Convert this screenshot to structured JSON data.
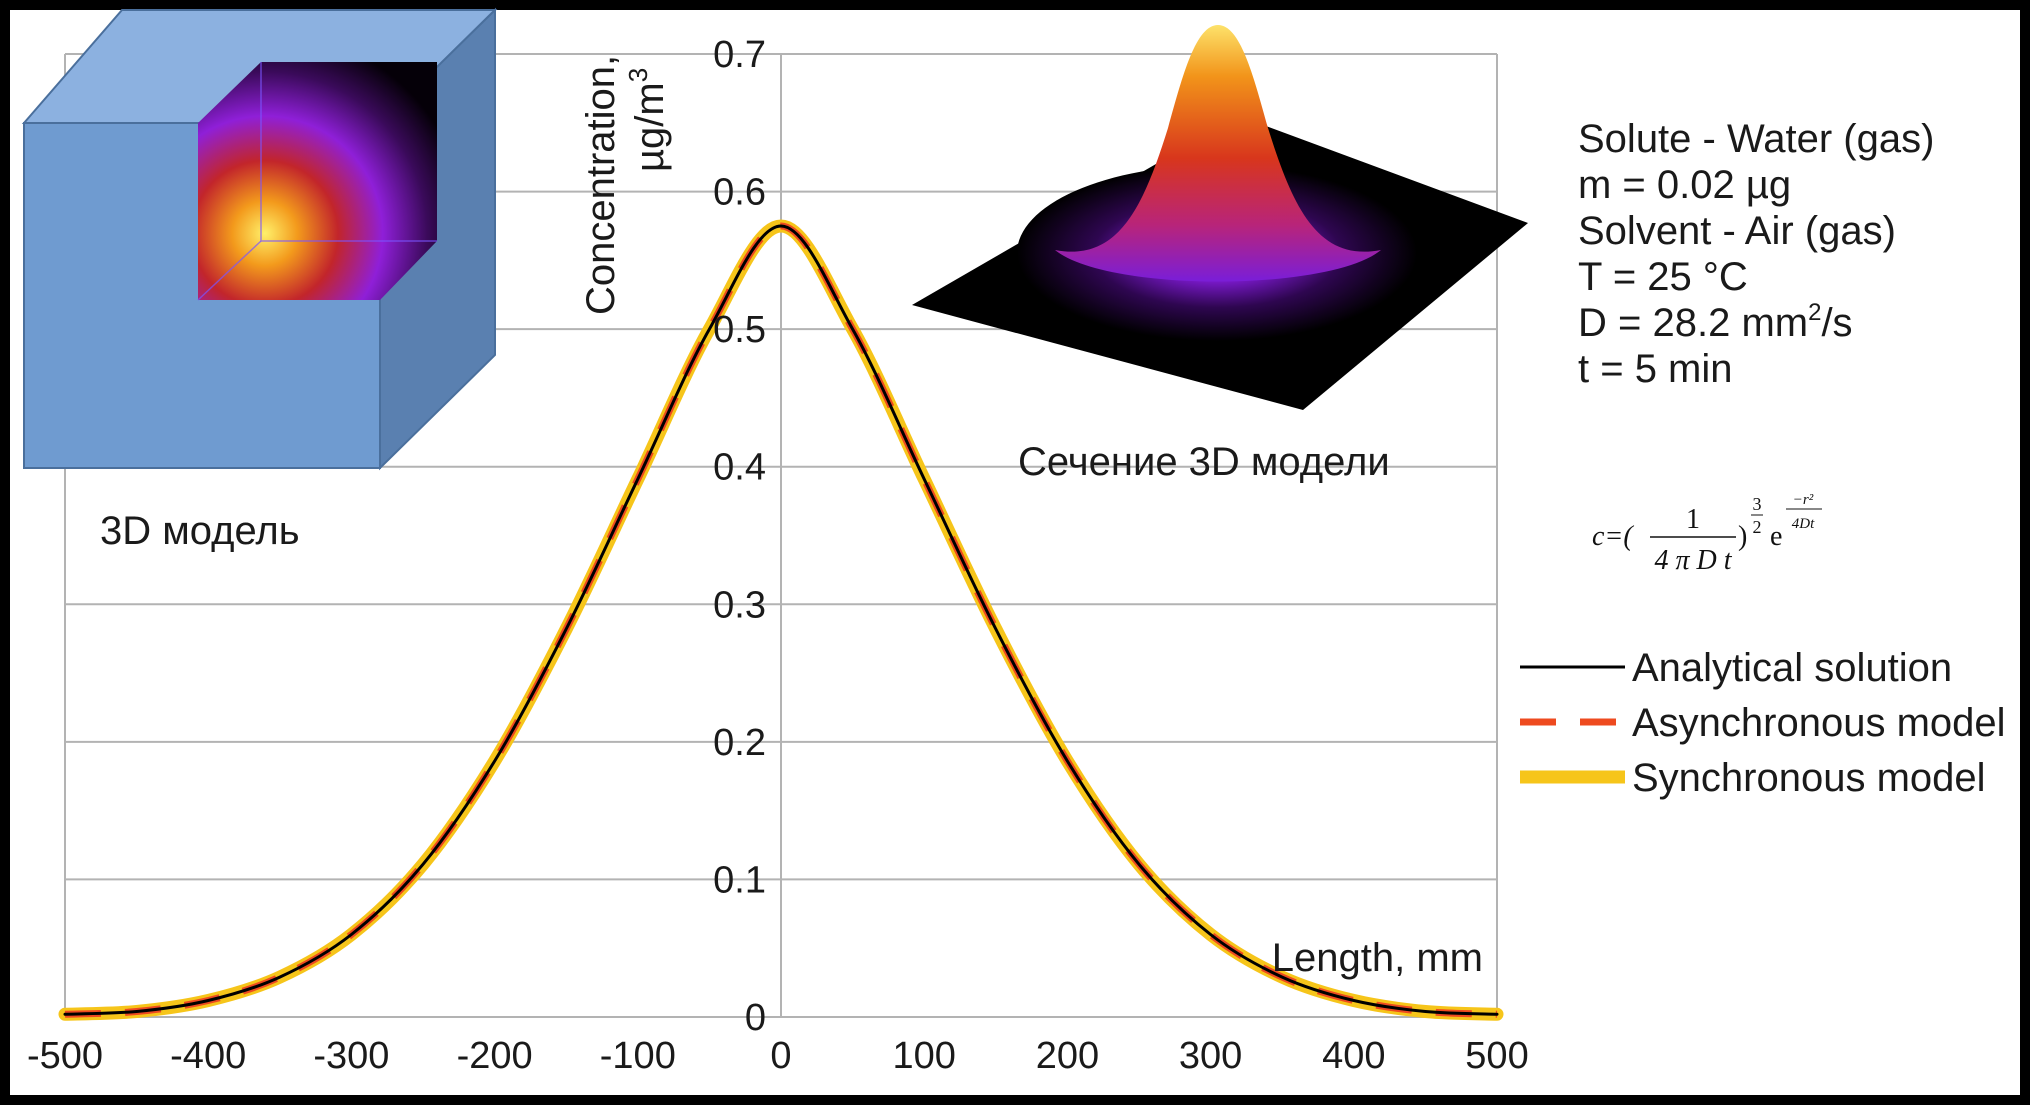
{
  "chart_data": {
    "type": "line",
    "xlabel": "Length, mm",
    "ylabel": "Concentration, µg/m³",
    "ylabel_line1": "Concentration,",
    "ylabel_line2": "µg/m",
    "ylabel_sup": "3",
    "xlim": [
      -500,
      500
    ],
    "ylim": [
      0,
      0.7
    ],
    "grid": true,
    "x_ticks": [
      -500,
      -400,
      -300,
      -200,
      -100,
      0,
      100,
      200,
      300,
      400,
      500
    ],
    "y_ticks": [
      0,
      0.1,
      0.2,
      0.3,
      0.4,
      0.5,
      0.6,
      0.7
    ],
    "x_tick_labels": [
      "-500",
      "-400",
      "-300",
      "-200",
      "-100",
      "0",
      "100",
      "200",
      "300",
      "400",
      "500"
    ],
    "y_tick_labels": [
      "0",
      "0.1",
      "0.2",
      "0.3",
      "0.4",
      "0.5",
      "0.6",
      "0.7"
    ],
    "x": [
      -500,
      -450,
      -400,
      -350,
      -300,
      -250,
      -200,
      -150,
      -100,
      -50,
      0,
      50,
      100,
      150,
      200,
      250,
      300,
      350,
      400,
      450,
      500
    ],
    "series": [
      {
        "name": "Analytical solution",
        "color": "#000000",
        "style": "solid",
        "values": [
          0.002,
          0.004,
          0.012,
          0.029,
          0.06,
          0.111,
          0.186,
          0.282,
          0.391,
          0.5,
          0.575,
          0.5,
          0.391,
          0.282,
          0.186,
          0.111,
          0.06,
          0.029,
          0.012,
          0.004,
          0.002
        ]
      },
      {
        "name": "Asynchronous model",
        "color": "#ee4a1f",
        "style": "dashed",
        "values": [
          0.002,
          0.004,
          0.012,
          0.029,
          0.06,
          0.111,
          0.186,
          0.282,
          0.391,
          0.5,
          0.575,
          0.5,
          0.391,
          0.282,
          0.186,
          0.111,
          0.06,
          0.029,
          0.012,
          0.004,
          0.002
        ]
      },
      {
        "name": "Synchronous model",
        "color": "#f6c51a",
        "style": "thick",
        "values": [
          0.002,
          0.004,
          0.012,
          0.029,
          0.06,
          0.111,
          0.186,
          0.282,
          0.391,
          0.5,
          0.575,
          0.5,
          0.391,
          0.282,
          0.186,
          0.111,
          0.06,
          0.029,
          0.012,
          0.004,
          0.002
        ]
      }
    ],
    "legend_position": "right"
  },
  "params": {
    "lines": [
      "Solute - Water (gas)",
      "m = 0.02 µg",
      "Solvent - Air (gas)",
      "T = 25 °C"
    ],
    "d_prefix": "D = 28.2 mm",
    "d_sup": "2",
    "d_suffix": "/s",
    "t_line": "t = 5 min"
  },
  "formula": {
    "lhs": "c=(",
    "numerator": "1",
    "denominator": "4 π D t",
    "rparen": ")",
    "exp_num": "3",
    "exp_den": "2",
    "e": "e",
    "e_exp_num": "−r²",
    "e_exp_den": "4Dt"
  },
  "captions": {
    "model_3d": "3D модель",
    "section_3d": "Сечение 3D модели"
  },
  "colors": {
    "background": "#000000",
    "plot_area": "#ffffff",
    "grid": "#b3b3b3",
    "cube_front": "#6f9bd0",
    "cube_top": "#8cb1e0",
    "cube_side": "#5a80b0"
  }
}
